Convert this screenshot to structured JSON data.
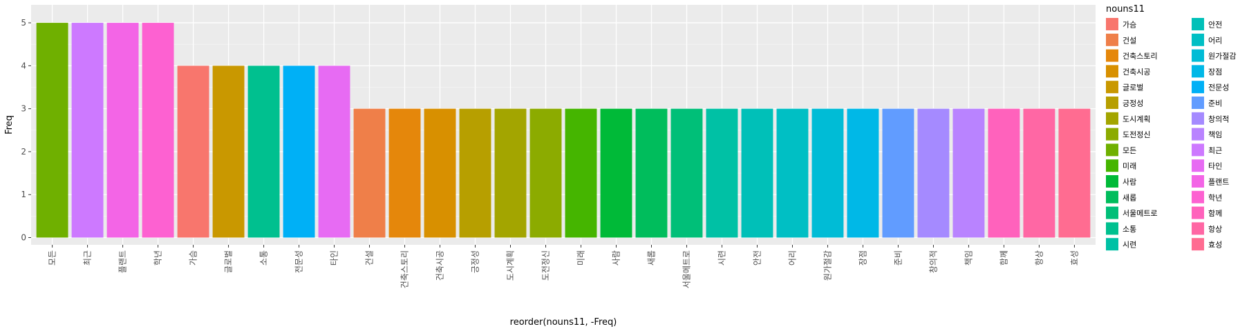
{
  "chart_data": {
    "type": "bar",
    "xlabel": "reorder(nouns11, -Freq)",
    "ylabel": "Freq",
    "ylim": [
      0,
      5.25
    ],
    "yticks": [
      "0",
      "1",
      "2",
      "3",
      "4",
      "5"
    ],
    "grid": true,
    "legend_position": "right",
    "legend_title": "nouns11",
    "categories": [
      "모든",
      "최근",
      "플랜트",
      "학년",
      "가슴",
      "글로벌",
      "소통",
      "전문성",
      "타인",
      "건설",
      "건축스토리",
      "건축시공",
      "긍정성",
      "도시계획",
      "도전정신",
      "미래",
      "사람",
      "새롭",
      "서울메트로",
      "시련",
      "안전",
      "어리",
      "원가절감",
      "장점",
      "준비",
      "창의적",
      "책임",
      "함께",
      "항상",
      "효성"
    ],
    "values": [
      5,
      5,
      5,
      5,
      4,
      4,
      4,
      4,
      4,
      3,
      3,
      3,
      3,
      3,
      3,
      3,
      3,
      3,
      3,
      3,
      3,
      3,
      3,
      3,
      3,
      3,
      3,
      3,
      3,
      3
    ],
    "legend_items": [
      "가슴",
      "건설",
      "건축스토리",
      "건축시공",
      "글로벌",
      "긍정성",
      "도시계획",
      "도전정신",
      "모든",
      "미래",
      "사람",
      "새롭",
      "서울메트로",
      "소통",
      "시련",
      "안전",
      "어리",
      "원가절감",
      "장점",
      "전문성",
      "준비",
      "창의적",
      "책임",
      "최근",
      "타인",
      "플랜트",
      "학년",
      "함께",
      "항상",
      "효성"
    ],
    "colors": {
      "가슴": "#F8766D",
      "건설": "#EF7F49",
      "건축스토리": "#E5870B",
      "건축시공": "#D89000",
      "글로벌": "#C99800",
      "긍정성": "#B79F00",
      "도시계획": "#A3A500",
      "도전정신": "#8CAB00",
      "모든": "#6FB000",
      "미래": "#45B500",
      "사람": "#00BA38",
      "새롭": "#00BD5C",
      "서울메트로": "#00BF78",
      "소통": "#00C08F",
      "시련": "#00C1A5",
      "안전": "#00C0B8",
      "어리": "#00BFC4",
      "원가절감": "#00BCD6",
      "장점": "#00B8E7",
      "전문성": "#00B0F6",
      "준비": "#619CFF",
      "창의적": "#A58AFF",
      "책임": "#B983FF",
      "최근": "#CD79FF",
      "타인": "#E76BF3",
      "플랜트": "#F365E6",
      "학년": "#FD61D1",
      "함께": "#FF62BC",
      "항상": "#FF67A4",
      "효성": "#FF6C91"
    }
  }
}
